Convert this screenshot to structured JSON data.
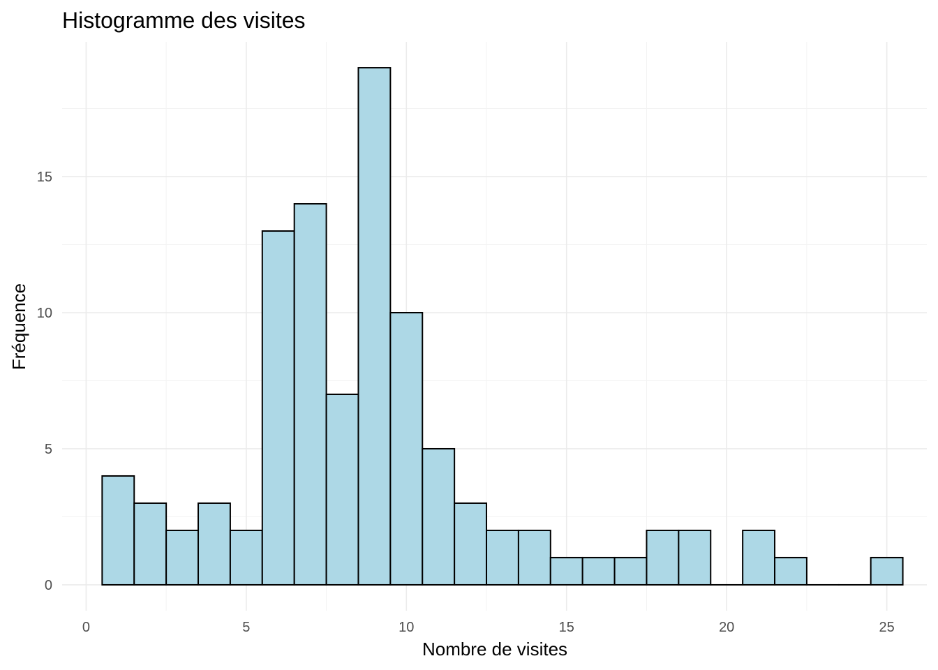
{
  "chart_data": {
    "type": "bar",
    "title": "Histogramme des visites",
    "xlabel": "Nombre de visites",
    "ylabel": "Fréquence",
    "bin_width": 1,
    "bins": [
      {
        "x": 1,
        "count": 4
      },
      {
        "x": 2,
        "count": 3
      },
      {
        "x": 3,
        "count": 2
      },
      {
        "x": 4,
        "count": 3
      },
      {
        "x": 5,
        "count": 2
      },
      {
        "x": 6,
        "count": 13
      },
      {
        "x": 7,
        "count": 14
      },
      {
        "x": 8,
        "count": 7
      },
      {
        "x": 9,
        "count": 19
      },
      {
        "x": 10,
        "count": 10
      },
      {
        "x": 11,
        "count": 5
      },
      {
        "x": 12,
        "count": 3
      },
      {
        "x": 13,
        "count": 2
      },
      {
        "x": 14,
        "count": 2
      },
      {
        "x": 15,
        "count": 1
      },
      {
        "x": 16,
        "count": 1
      },
      {
        "x": 17,
        "count": 1
      },
      {
        "x": 18,
        "count": 2
      },
      {
        "x": 19,
        "count": 2
      },
      {
        "x": 20,
        "count": 0
      },
      {
        "x": 21,
        "count": 2
      },
      {
        "x": 22,
        "count": 1
      },
      {
        "x": 23,
        "count": 0
      },
      {
        "x": 24,
        "count": 0
      },
      {
        "x": 25,
        "count": 1
      }
    ],
    "xlim": [
      -0.75,
      26.25
    ],
    "ylim": [
      -0.95,
      19.95
    ],
    "x_ticks": [
      0,
      5,
      10,
      15,
      20,
      25
    ],
    "y_ticks": [
      0,
      5,
      10,
      15
    ],
    "grid": true,
    "bar_fill": "#add8e6",
    "bar_outline": "#000000"
  }
}
